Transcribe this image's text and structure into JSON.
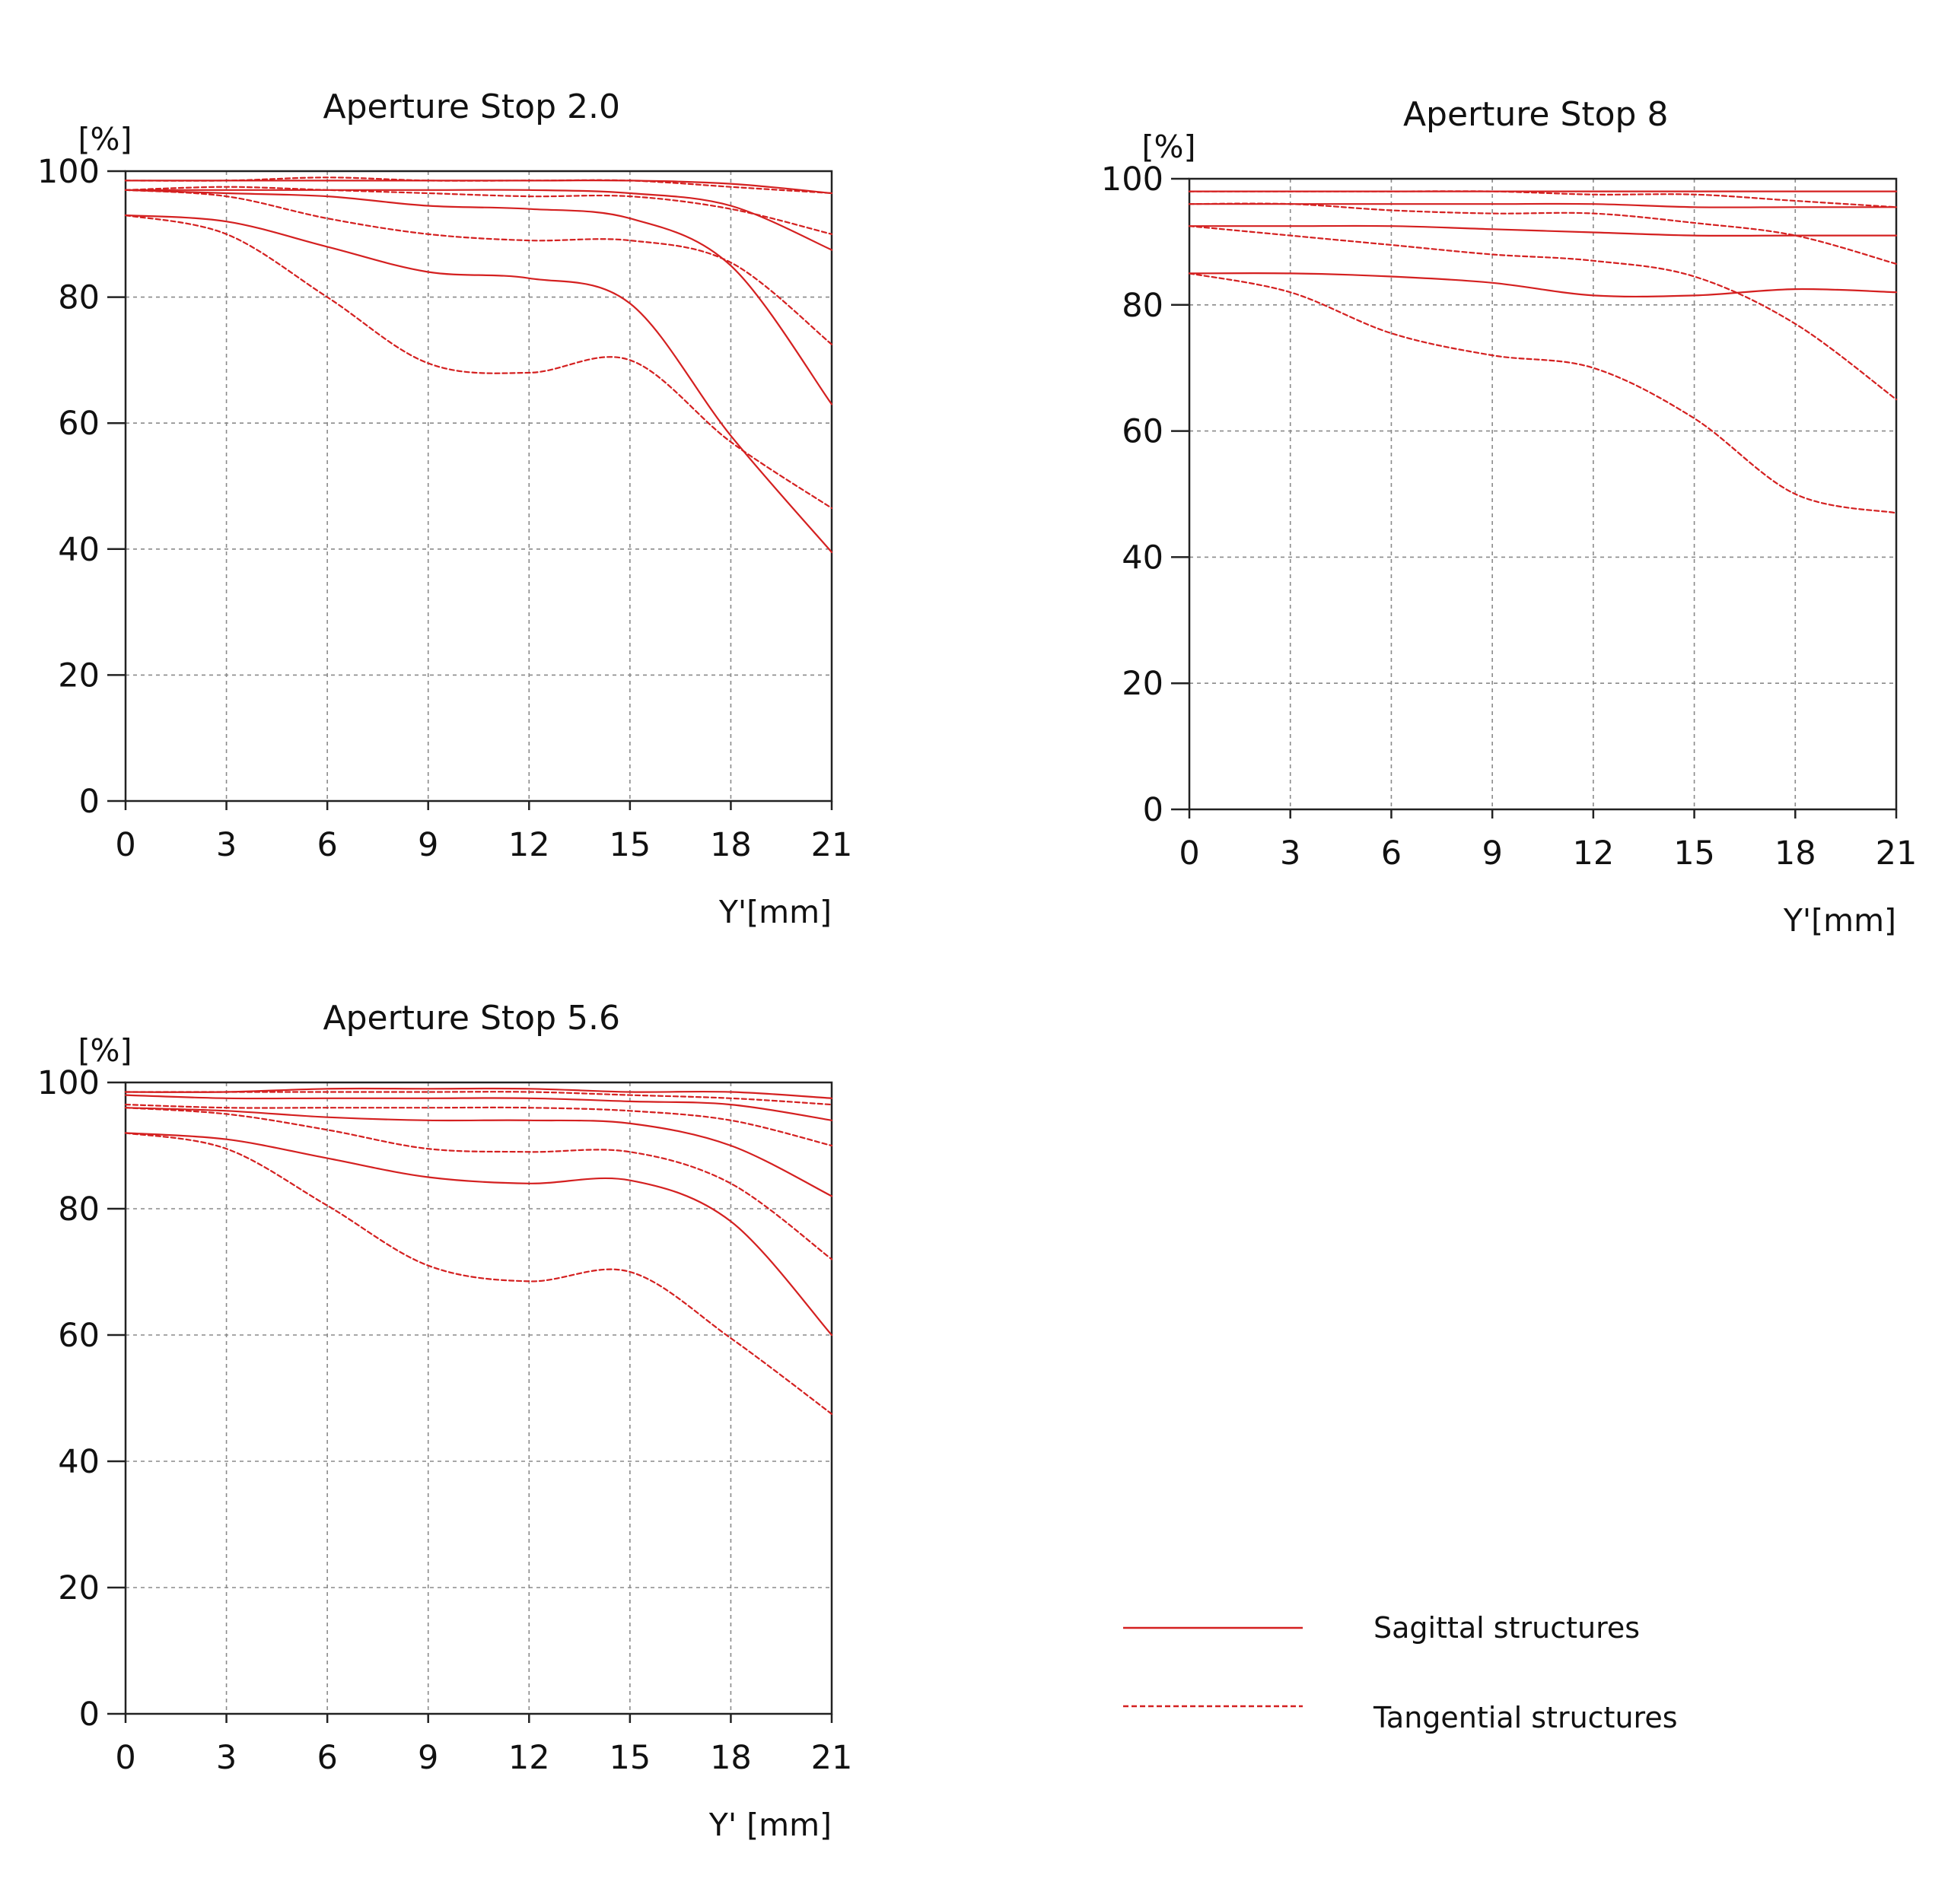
{
  "colors": {
    "curve": "#d42020",
    "axis": "#222222",
    "grid": "#8a8a8a"
  },
  "legend": {
    "items": [
      {
        "label": "Sagittal structures",
        "style": "solid"
      },
      {
        "label": "Tangential structures",
        "style": "dashed"
      }
    ]
  },
  "chart_data": [
    {
      "type": "line",
      "title": "Aperture Stop 2.0",
      "xlabel": "Y'[mm]",
      "ylabel": "[%]",
      "xlim": [
        0,
        21
      ],
      "ylim": [
        0,
        100
      ],
      "xticks": [
        "0",
        "3",
        "6",
        "9",
        "12",
        "15",
        "18",
        "21"
      ],
      "yticks": [
        "0",
        "20",
        "40",
        "60",
        "80",
        "100"
      ],
      "grid": true,
      "x": [
        0,
        3,
        6,
        9,
        12,
        15,
        18,
        21
      ],
      "series": [
        {
          "style": "solid",
          "values": [
            98.5,
            98.5,
            98.5,
            98.5,
            98.5,
            98.5,
            98.0,
            96.5
          ]
        },
        {
          "style": "dashed",
          "values": [
            98.5,
            98.5,
            99.0,
            98.5,
            98.5,
            98.5,
            97.5,
            96.5
          ]
        },
        {
          "style": "solid",
          "values": [
            97.0,
            97.0,
            97.0,
            97.0,
            97.0,
            96.5,
            94.5,
            87.5
          ]
        },
        {
          "style": "dashed",
          "values": [
            97.0,
            97.5,
            97.0,
            96.5,
            96.0,
            96.0,
            94.0,
            90.0
          ]
        },
        {
          "style": "solid",
          "values": [
            97.0,
            96.5,
            96.0,
            94.5,
            94.0,
            92.5,
            85.0,
            63.0
          ]
        },
        {
          "style": "dashed",
          "values": [
            97.0,
            96.0,
            92.5,
            90.0,
            89.0,
            89.0,
            85.5,
            72.5
          ]
        },
        {
          "style": "solid",
          "values": [
            93.0,
            92.0,
            88.0,
            84.0,
            83.0,
            79.0,
            58.0,
            39.5
          ]
        },
        {
          "style": "dashed",
          "values": [
            93.0,
            90.0,
            80.0,
            69.5,
            68.0,
            70.0,
            57.0,
            46.5
          ]
        }
      ]
    },
    {
      "type": "line",
      "title": "Aperture Stop 8",
      "xlabel": "Y'[mm]",
      "ylabel": "[%]",
      "xlim": [
        0,
        21
      ],
      "ylim": [
        0,
        100
      ],
      "xticks": [
        "0",
        "3",
        "6",
        "9",
        "12",
        "15",
        "18",
        "21"
      ],
      "yticks": [
        "0",
        "20",
        "40",
        "60",
        "80",
        "100"
      ],
      "grid": true,
      "x": [
        0,
        3,
        6,
        9,
        12,
        15,
        18,
        21
      ],
      "series": [
        {
          "style": "solid",
          "values": [
            98.0,
            98.0,
            98.0,
            98.0,
            98.0,
            98.0,
            98.0,
            98.0
          ]
        },
        {
          "style": "dashed",
          "values": [
            98.0,
            98.0,
            98.0,
            98.0,
            97.5,
            97.5,
            96.5,
            95.5
          ]
        },
        {
          "style": "solid",
          "values": [
            96.0,
            96.0,
            96.0,
            96.0,
            96.0,
            95.5,
            95.5,
            95.5
          ]
        },
        {
          "style": "dashed",
          "values": [
            96.0,
            96.0,
            95.0,
            94.5,
            94.5,
            93.0,
            91.0,
            86.5
          ]
        },
        {
          "style": "solid",
          "values": [
            92.5,
            92.5,
            92.5,
            92.0,
            91.5,
            91.0,
            91.0,
            91.0
          ]
        },
        {
          "style": "dashed",
          "values": [
            92.5,
            91.0,
            89.5,
            88.0,
            87.0,
            84.5,
            77.0,
            65.0
          ]
        },
        {
          "style": "solid",
          "values": [
            85.0,
            85.0,
            84.5,
            83.5,
            81.5,
            81.5,
            82.5,
            82.0
          ]
        },
        {
          "style": "dashed",
          "values": [
            85.0,
            82.0,
            75.5,
            72.0,
            70.0,
            62.0,
            50.0,
            47.0
          ]
        }
      ]
    },
    {
      "type": "line",
      "title": "Aperture Stop 5.6",
      "xlabel": "Y' [mm]",
      "ylabel": "[%]",
      "xlim": [
        0,
        21
      ],
      "ylim": [
        0,
        100
      ],
      "xticks": [
        "0",
        "3",
        "6",
        "9",
        "12",
        "15",
        "18",
        "21"
      ],
      "yticks": [
        "0",
        "20",
        "40",
        "60",
        "80",
        "100"
      ],
      "grid": true,
      "x": [
        0,
        3,
        6,
        9,
        12,
        15,
        18,
        21
      ],
      "series": [
        {
          "style": "solid",
          "values": [
            98.5,
            98.5,
            99.0,
            99.0,
            99.0,
            98.5,
            98.5,
            97.5
          ]
        },
        {
          "style": "dashed",
          "values": [
            98.5,
            98.5,
            98.5,
            98.5,
            98.5,
            98.0,
            97.5,
            96.5
          ]
        },
        {
          "style": "solid",
          "values": [
            98.0,
            97.5,
            97.5,
            97.5,
            97.5,
            97.0,
            96.5,
            94.0
          ]
        },
        {
          "style": "dashed",
          "values": [
            96.5,
            96.0,
            96.0,
            96.0,
            96.0,
            95.5,
            94.0,
            90.0
          ]
        },
        {
          "style": "solid",
          "values": [
            96.0,
            95.5,
            94.5,
            94.0,
            94.0,
            93.5,
            90.0,
            82.0
          ]
        },
        {
          "style": "dashed",
          "values": [
            96.0,
            95.0,
            92.5,
            89.5,
            89.0,
            89.0,
            84.0,
            72.0
          ]
        },
        {
          "style": "solid",
          "values": [
            92.0,
            91.0,
            88.0,
            85.0,
            84.0,
            84.5,
            78.0,
            60.0
          ]
        },
        {
          "style": "dashed",
          "values": [
            92.0,
            89.5,
            80.5,
            71.0,
            68.5,
            70.0,
            59.5,
            47.5
          ]
        }
      ]
    }
  ]
}
